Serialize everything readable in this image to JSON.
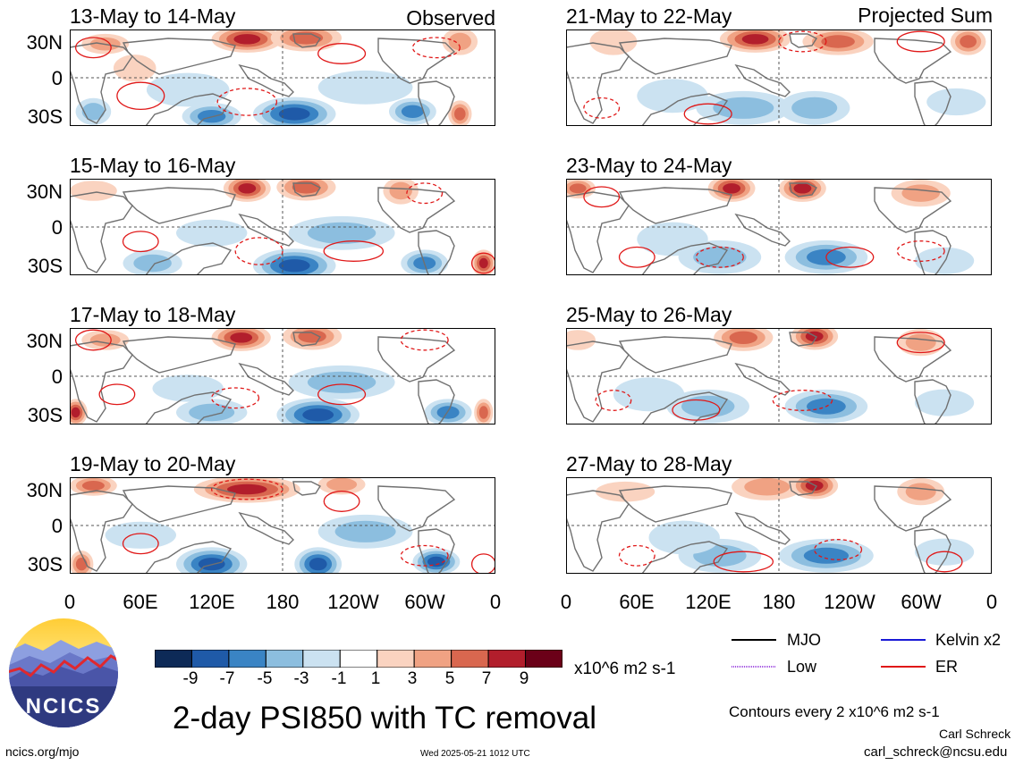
{
  "header": {
    "left_label": "Observed",
    "right_label": "Projected Sum"
  },
  "panels": {
    "left": [
      {
        "date_range": "13-May to 14-May"
      },
      {
        "date_range": "15-May to 16-May"
      },
      {
        "date_range": "17-May to 18-May"
      },
      {
        "date_range": "19-May to 20-May"
      }
    ],
    "right": [
      {
        "date_range": "21-May to 22-May"
      },
      {
        "date_range": "23-May to 24-May"
      },
      {
        "date_range": "25-May to 26-May"
      },
      {
        "date_range": "27-May to 28-May"
      }
    ]
  },
  "axes": {
    "y_ticks": [
      "30N",
      "0",
      "30S"
    ],
    "x_ticks": [
      "0",
      "60E",
      "120E",
      "180",
      "120W",
      "60W",
      "0"
    ]
  },
  "colorbar": {
    "labels": [
      "-9",
      "-7",
      "-5",
      "-3",
      "-1",
      "1",
      "3",
      "5",
      "7",
      "9"
    ],
    "colors": [
      "#0d2a57",
      "#1f5aa8",
      "#3a84c4",
      "#8cbedf",
      "#cbe2f1",
      "#ffffff",
      "#fad3c0",
      "#f0a283",
      "#d9674f",
      "#b21e2c",
      "#6b0018"
    ],
    "units": "x10^6 m2 s-1"
  },
  "legend": {
    "items": [
      {
        "label": "MJO",
        "color": "#000000"
      },
      {
        "label": "Kelvin x2",
        "color": "#1a1ad6"
      },
      {
        "label": "Low",
        "color": "#a050e0"
      },
      {
        "label": "ER",
        "color": "#e01818"
      }
    ],
    "contour_note": "Contours every 2 x10^6 m2 s-1"
  },
  "logo": {
    "text": "NCICS"
  },
  "title": "2-day PSI850 with TC removal",
  "footer": {
    "url": "ncics.org/mjo",
    "timestamp": "Wed 2025-05-21 1012 UTC",
    "author": "Carl Schreck",
    "email": "carl_schreck@ncsu.edu"
  }
}
